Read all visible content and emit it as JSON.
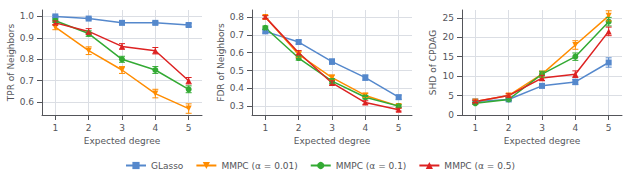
{
  "chart_data": [
    {
      "type": "line",
      "xlabel": "Expected degree",
      "ylabel": "TPR of Neighbors",
      "x": [
        1,
        2,
        3,
        4,
        5
      ],
      "xlim": [
        0.6,
        5.4
      ],
      "xticks": [
        1,
        2,
        3,
        4,
        5
      ],
      "ylim": [
        0.54,
        1.03
      ],
      "yticks": [
        0.6,
        0.7,
        0.8,
        0.9,
        {
          "value": 1.0,
          "label": "1.0"
        }
      ],
      "grid": true,
      "legend": "bottom",
      "series": [
        {
          "name": "GLasso",
          "color": "#5588CC",
          "marker": "square",
          "values": [
            1.0,
            0.99,
            0.97,
            0.97,
            0.96
          ],
          "errors": [
            0.005,
            0.005,
            0.007,
            0.007,
            0.008
          ]
        },
        {
          "name": "MMPC (α = 0.01)",
          "color": "#FF8C00",
          "marker": "triangle_down",
          "values": [
            0.95,
            0.84,
            0.75,
            0.64,
            0.57
          ],
          "errors": [
            0.012,
            0.018,
            0.016,
            0.02,
            0.022
          ]
        },
        {
          "name": "MMPC (α = 0.1)",
          "color": "#33AA33",
          "marker": "circle",
          "values": [
            0.98,
            0.92,
            0.8,
            0.75,
            0.66
          ],
          "errors": [
            0.008,
            0.013,
            0.014,
            0.016,
            0.016
          ]
        },
        {
          "name": "MMPC (α = 0.5)",
          "color": "#DD2222",
          "marker": "triangle_up",
          "values": [
            0.97,
            0.93,
            0.86,
            0.84,
            0.7
          ],
          "errors": [
            0.009,
            0.013,
            0.013,
            0.015,
            0.015
          ]
        }
      ]
    },
    {
      "type": "line",
      "xlabel": "Expected degree",
      "ylabel": "FDR of Neighbors",
      "x": [
        1,
        2,
        3,
        4,
        5
      ],
      "xlim": [
        0.6,
        5.4
      ],
      "xticks": [
        1,
        2,
        3,
        4,
        5
      ],
      "ylim": [
        0.25,
        0.84
      ],
      "yticks": [
        0.3,
        0.4,
        0.5,
        0.6,
        0.7,
        0.8
      ],
      "grid": true,
      "series": [
        {
          "name": "GLasso",
          "color": "#5588CC",
          "marker": "square",
          "values": [
            0.72,
            0.66,
            0.55,
            0.46,
            0.35
          ],
          "errors": [
            0.01,
            0.012,
            0.015,
            0.015,
            0.012
          ]
        },
        {
          "name": "MMPC (α = 0.01)",
          "color": "#FF8C00",
          "marker": "triangle_down",
          "values": [
            0.8,
            0.59,
            0.46,
            0.36,
            0.3
          ],
          "errors": [
            0.01,
            0.015,
            0.015,
            0.012,
            0.01
          ]
        },
        {
          "name": "MMPC (α = 0.1)",
          "color": "#33AA33",
          "marker": "circle",
          "values": [
            0.74,
            0.57,
            0.44,
            0.35,
            0.3
          ],
          "errors": [
            0.01,
            0.012,
            0.014,
            0.01,
            0.008
          ]
        },
        {
          "name": "MMPC (α = 0.5)",
          "color": "#DD2222",
          "marker": "triangle_up",
          "values": [
            0.8,
            0.6,
            0.43,
            0.32,
            0.28
          ],
          "errors": [
            0.008,
            0.012,
            0.012,
            0.01,
            0.008
          ]
        }
      ]
    },
    {
      "type": "line",
      "xlabel": "Expected degree",
      "ylabel": "SHD of CPDAG",
      "x": [
        1,
        2,
        3,
        4,
        5
      ],
      "xlim": [
        0.6,
        5.4
      ],
      "xticks": [
        1,
        2,
        3,
        4,
        5
      ],
      "ylim": [
        0,
        27
      ],
      "yticks": [
        0,
        5,
        10,
        15,
        20,
        25
      ],
      "grid": true,
      "series": [
        {
          "name": "GLasso",
          "color": "#5588CC",
          "marker": "square",
          "values": [
            3.5,
            4.0,
            7.5,
            8.5,
            13.5
          ],
          "errors": [
            0.25,
            0.3,
            0.55,
            0.7,
            1.2
          ]
        },
        {
          "name": "MMPC (α = 0.01)",
          "color": "#FF8C00",
          "marker": "triangle_down",
          "values": [
            3.5,
            5.0,
            10.5,
            18.0,
            25.5
          ],
          "errors": [
            0.3,
            0.45,
            0.8,
            1.1,
            1.3
          ]
        },
        {
          "name": "MMPC (α = 0.1)",
          "color": "#33AA33",
          "marker": "circle",
          "values": [
            3.0,
            4.0,
            10.5,
            15.0,
            24.0
          ],
          "errors": [
            0.25,
            0.35,
            0.75,
            0.95,
            1.1
          ]
        },
        {
          "name": "MMPC (α = 0.5)",
          "color": "#DD2222",
          "marker": "triangle_up",
          "values": [
            3.5,
            5.0,
            9.5,
            10.5,
            21.5
          ],
          "errors": [
            0.3,
            0.45,
            0.7,
            0.85,
            1.1
          ]
        }
      ]
    }
  ]
}
